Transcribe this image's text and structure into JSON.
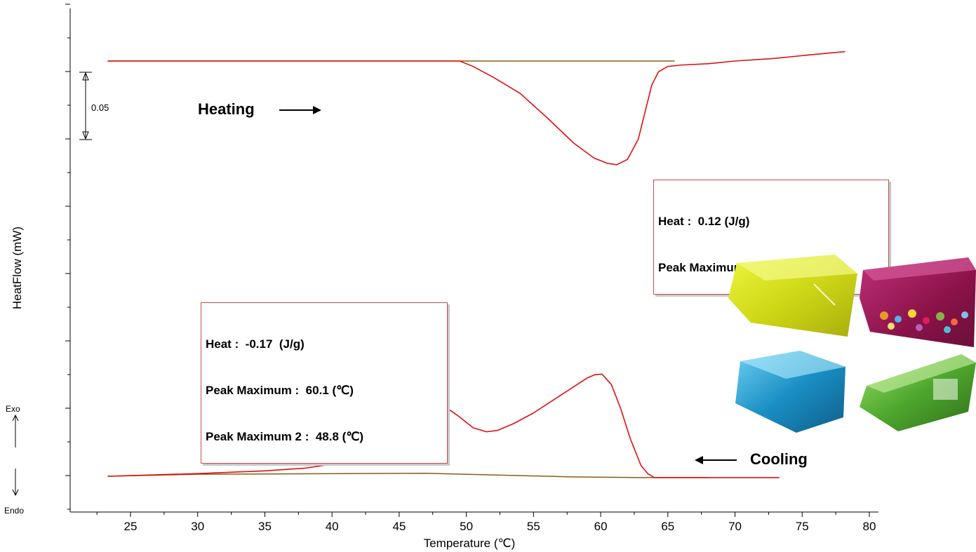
{
  "chart_data": {
    "type": "line",
    "xlabel": "Temperature (℃)",
    "ylabel": "HeatFlow (mW)",
    "xlim": [
      21,
      81
    ],
    "x_ticks": [
      "25",
      "30",
      "35",
      "40",
      "45",
      "50",
      "55",
      "60",
      "65",
      "70",
      "75",
      "80"
    ],
    "x_tick_values": [
      25,
      30,
      35,
      40,
      45,
      50,
      55,
      60,
      65,
      70,
      75,
      80
    ],
    "scale_bar_label": "0.05",
    "scale_bar_value": 0.05,
    "exo_label": "Exo",
    "endo_label": "Endo",
    "curve_color": "#dd1111",
    "baseline_color": "#8b5a1a",
    "series": [
      {
        "name": "Heating",
        "direction_label": "Heating",
        "arrow_direction": "right",
        "x": [
          23.3,
          30,
          35,
          40,
          45,
          48,
          49.5,
          50.5,
          52,
          54,
          56,
          58,
          59.5,
          60.5,
          61.2,
          62,
          62.8,
          63.3,
          63.8,
          64.3,
          65,
          66,
          68,
          70,
          73,
          76,
          78.2
        ],
        "y": [
          0.0,
          0.0,
          0.0,
          0.0,
          0.0,
          0.0,
          0.0,
          -0.004,
          -0.012,
          -0.024,
          -0.042,
          -0.061,
          -0.072,
          -0.076,
          -0.077,
          -0.073,
          -0.058,
          -0.038,
          -0.018,
          -0.008,
          -0.004,
          -0.003,
          -0.002,
          0.0,
          0.002,
          0.005,
          0.007
        ],
        "baseline": {
          "x": [
            23.3,
            65.5
          ],
          "y": [
            0.0,
            0.0
          ]
        },
        "annotation": [
          "Heat :  0.12 (J/g)",
          "Peak Maximum :  61.2 (℃)"
        ]
      },
      {
        "name": "Cooling",
        "direction_label": "Cooling",
        "arrow_direction": "left",
        "x": [
          23.3,
          30,
          35,
          38,
          40,
          43,
          45,
          46.5,
          47.5,
          48.3,
          48.8,
          49.5,
          50.5,
          51.5,
          52.3,
          53.5,
          55,
          57,
          59,
          59.6,
          60.1,
          60.8,
          61.5,
          62.2,
          63,
          63.5,
          64,
          65,
          70,
          73.3
        ],
        "y": [
          0.0,
          0.002,
          0.004,
          0.006,
          0.009,
          0.015,
          0.02,
          0.028,
          0.038,
          0.047,
          0.049,
          0.044,
          0.036,
          0.033,
          0.034,
          0.039,
          0.047,
          0.06,
          0.073,
          0.0755,
          0.0758,
          0.068,
          0.05,
          0.028,
          0.008,
          0.002,
          -0.001,
          -0.001,
          -0.001,
          -0.001
        ],
        "baseline": {
          "x": [
            23.3,
            30,
            47,
            52,
            58,
            63,
            65,
            68
          ],
          "y": [
            0.0,
            0.0015,
            0.0022,
            0.001,
            -0.0005,
            -0.001,
            -0.001,
            -0.001
          ]
        },
        "annotation": [
          "Heat :  -0.17  (J/g)",
          "Peak Maximum :  60.1 (℃)",
          "Peak Maximum 2 :  48.8 (℃)"
        ]
      }
    ],
    "photo": {
      "description_icon": "gel-candle-blocks",
      "block_colors": [
        "#d8e31c",
        "#a01a5a",
        "#1a8fc4",
        "#4fa82e"
      ]
    }
  }
}
